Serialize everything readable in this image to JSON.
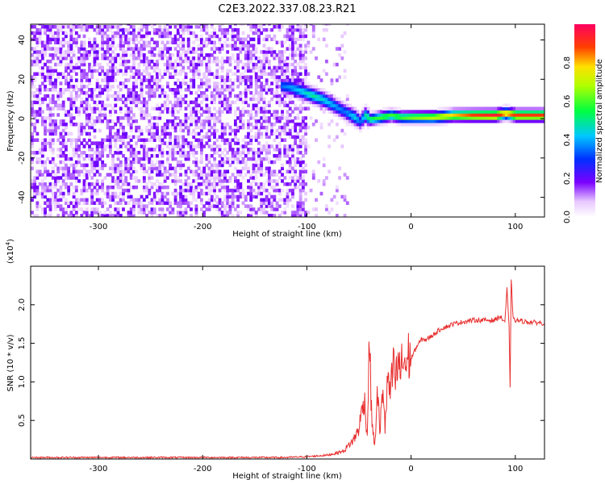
{
  "title": "C2E3.2022.337.08.23.R21",
  "chart_data": [
    {
      "type": "heatmap",
      "xlabel": "Height of straight line (km)",
      "ylabel": "Frequency (Hz)",
      "xlim": [
        -365,
        128
      ],
      "ylim": [
        -50,
        48
      ],
      "x_ticks": [
        "-300",
        "-200",
        "-100",
        "0",
        "100"
      ],
      "y_ticks": [
        "-40",
        "-20",
        "0",
        "20",
        "40"
      ],
      "colorbar": {
        "label": "Normalized spectral amplitude",
        "range": [
          0,
          1
        ],
        "ticks": [
          "0.0",
          "0.2",
          "0.4",
          "0.6",
          "0.8"
        ]
      },
      "noise_region_x": [
        -365,
        -80
      ],
      "signal_ridge": {
        "x": [
          -125,
          -115,
          -105,
          -95,
          -85,
          -75,
          -65,
          -55,
          -50,
          -45,
          -40,
          -30,
          -20,
          -10,
          0,
          20,
          40,
          60,
          80,
          90,
          100,
          128
        ],
        "frequency": [
          16,
          15,
          13,
          11,
          9,
          6,
          3,
          0,
          -2,
          1,
          -1,
          0,
          1,
          0,
          0,
          0,
          1,
          1,
          1,
          2,
          1,
          1
        ],
        "peak_amplitude": [
          0.35,
          0.4,
          0.45,
          0.5,
          0.45,
          0.4,
          0.35,
          0.45,
          0.35,
          0.5,
          0.55,
          0.6,
          0.6,
          0.6,
          0.65,
          0.7,
          0.8,
          0.9,
          0.95,
          0.85,
          0.9,
          0.9
        ]
      },
      "grid": false
    },
    {
      "type": "line",
      "xlabel": "Height of straight line (km)",
      "ylabel": "SNR (10 * v/v)",
      "y_multiplier": "(x10",
      "y_multiplier_exp": "4",
      "y_multiplier_close": ")",
      "xlim": [
        -365,
        128
      ],
      "ylim": [
        0,
        2.5
      ],
      "x_ticks": [
        "-300",
        "-200",
        "-100",
        "0",
        "100"
      ],
      "y_ticks": [
        "0.5",
        "1.0",
        "1.5",
        "2.0"
      ],
      "series": [
        {
          "color": "#e83030",
          "x": [
            -365,
            -300,
            -200,
            -120,
            -100,
            -80,
            -65,
            -55,
            -50,
            -45,
            -42,
            -40,
            -38,
            -35,
            -32,
            -30,
            -27,
            -25,
            -22,
            -20,
            -17,
            -15,
            -12,
            -10,
            -7,
            -5,
            -2,
            0,
            5,
            10,
            15,
            20,
            25,
            30,
            35,
            40,
            50,
            60,
            70,
            80,
            85,
            90,
            92,
            94,
            95,
            96,
            98,
            100,
            110,
            120,
            128
          ],
          "values": [
            0.02,
            0.02,
            0.02,
            0.02,
            0.03,
            0.05,
            0.1,
            0.25,
            0.4,
            0.8,
            0.3,
            1.6,
            0.6,
            0.15,
            0.9,
            0.3,
            1.0,
            0.4,
            1.1,
            0.8,
            1.2,
            1.0,
            1.25,
            1.15,
            1.3,
            1.2,
            1.35,
            1.3,
            1.45,
            1.55,
            1.55,
            1.6,
            1.65,
            1.7,
            1.72,
            1.75,
            1.78,
            1.8,
            1.8,
            1.8,
            1.85,
            1.78,
            2.2,
            1.7,
            0.9,
            2.35,
            1.8,
            1.8,
            1.78,
            1.77,
            1.76
          ]
        }
      ],
      "grid": false
    }
  ]
}
